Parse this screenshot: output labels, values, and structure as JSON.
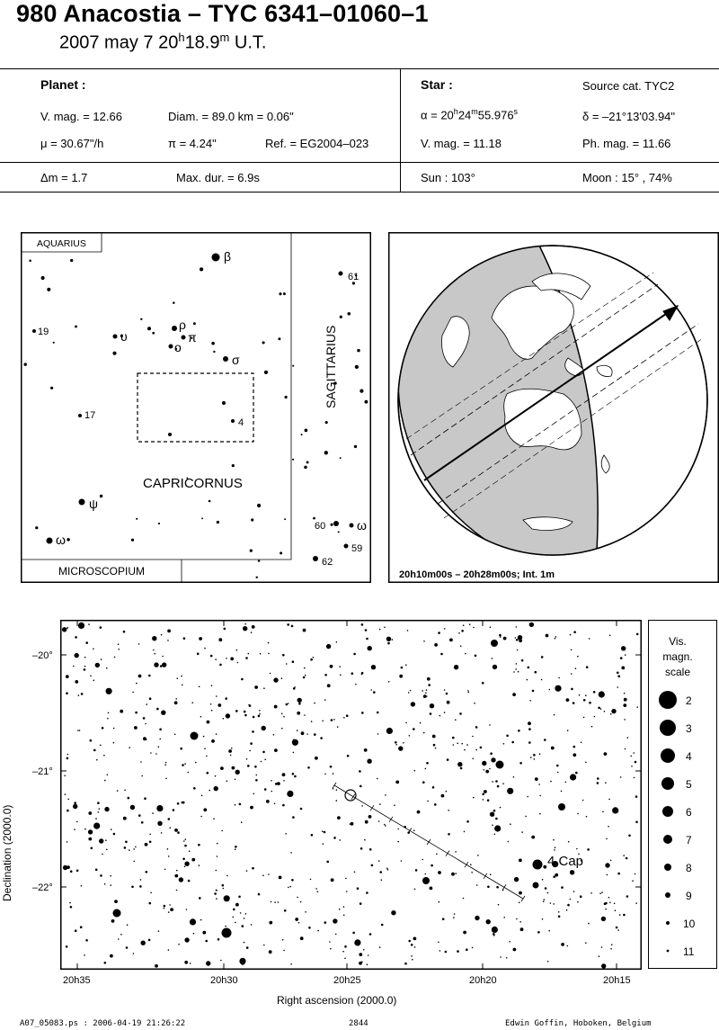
{
  "title": "980 Anacostia  –  TYC 6341–01060–1",
  "subtitle": {
    "date": "2007 may  7  20",
    "h": "h",
    "min": "18.9",
    "m": "m",
    "ut": " U.T."
  },
  "planet": {
    "heading": "Planet :",
    "vmag": "V. mag. = 12.66",
    "diam": "Diam. = 89.0 km = 0.06\"",
    "mu": "μ =  30.67\"/h",
    "pi": "π =  4.24\"",
    "ref": "Ref. = EG2004–023",
    "dm": "Δm = 1.7",
    "maxdur": "Max. dur. = 6.9s"
  },
  "star": {
    "heading": "Star :",
    "source": "Source cat.  TYC2",
    "alpha_pre": "α = 20",
    "alpha_h": "h",
    "alpha_mid": "24",
    "alpha_m": "m",
    "alpha_sec": "55.976",
    "alpha_s": "s",
    "delta": "δ = –21°13'03.94\"",
    "vmag": "V. mag. = 11.18",
    "phmag": "Ph. mag. = 11.66",
    "sun": "Sun : 103°",
    "moon": "Moon :  15° , 74%"
  },
  "constellation_map": {
    "labels": {
      "aquarius": "AQUARIUS",
      "sagittarius": "SAGITTARIUS",
      "capricornus": "CAPRICORNUS",
      "microscopium": "MICROSCOPIUM"
    },
    "stars": [
      "β",
      "ρ",
      "π",
      "ο",
      "υ",
      "σ",
      "19",
      "17",
      "4",
      "ψ",
      "ω",
      "61",
      "60",
      "ω",
      "59",
      "62"
    ]
  },
  "globe": {
    "caption": "20h10m00s – 20h28m00s; Int.  1m"
  },
  "starfield": {
    "dec_ticks": [
      "–20°",
      "–21°",
      "–22°"
    ],
    "ra_ticks": [
      "20h35",
      "20h30",
      "20h25",
      "20h20",
      "20h15"
    ],
    "star_label": "4 Cap",
    "xlabel": "Right ascension (2000.0)",
    "ylabel": "Declination (2000.0)"
  },
  "legend": {
    "title_lines": [
      "Vis.",
      "magn.",
      "scale"
    ],
    "mags": [
      "2",
      "3",
      "4",
      "5",
      "6",
      "7",
      "8",
      "9",
      "10",
      "11"
    ]
  },
  "footer": {
    "file": "A07_05083.ps : 2006-04-19 21:26:22",
    "code": "2844",
    "author": "Edwin Goffin, Hoboken, Belgium"
  }
}
